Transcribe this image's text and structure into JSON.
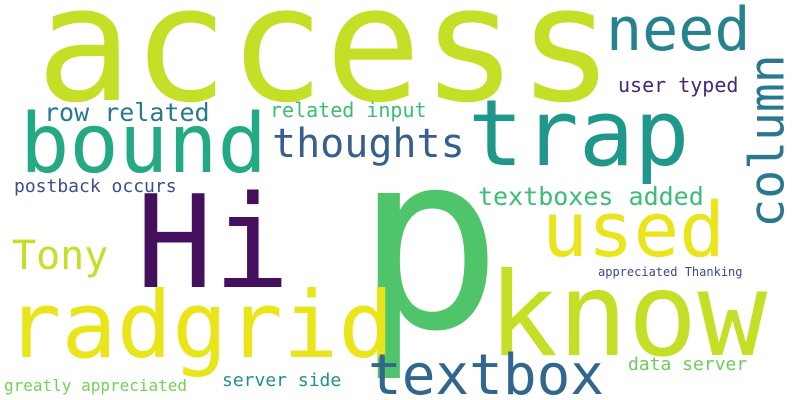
{
  "words": [
    {
      "text": "access",
      "color": "#c4df26"
    },
    {
      "text": "p",
      "color": "#4fc46a"
    },
    {
      "text": "Hi",
      "color": "#440f5d"
    },
    {
      "text": "know",
      "color": "#c4df26"
    },
    {
      "text": "radgrid",
      "color": "#eae51a"
    },
    {
      "text": "bound",
      "color": "#23a983"
    },
    {
      "text": "trap",
      "color": "#1f988b"
    },
    {
      "text": "used",
      "color": "#eae51a"
    },
    {
      "text": "textbox",
      "color": "#31668e"
    },
    {
      "text": "need",
      "color": "#25828e"
    },
    {
      "text": "column",
      "color": "#2a788e"
    },
    {
      "text": "thoughts",
      "color": "#355f8d"
    },
    {
      "text": "Tony",
      "color": "#c4df26"
    },
    {
      "text": "row related",
      "color": "#2a788e"
    },
    {
      "text": "related input",
      "color": "#3dbc74"
    },
    {
      "text": "user typed",
      "color": "#482777"
    },
    {
      "text": "textboxes added",
      "color": "#3dbc74"
    },
    {
      "text": "postback occurs",
      "color": "#3d4d8a"
    },
    {
      "text": "appreciated Thanking",
      "color": "#3e4989"
    },
    {
      "text": "server side",
      "color": "#21918c"
    },
    {
      "text": "data server",
      "color": "#6ccd5a"
    },
    {
      "text": "greatly appreciated",
      "color": "#75d054"
    }
  ]
}
